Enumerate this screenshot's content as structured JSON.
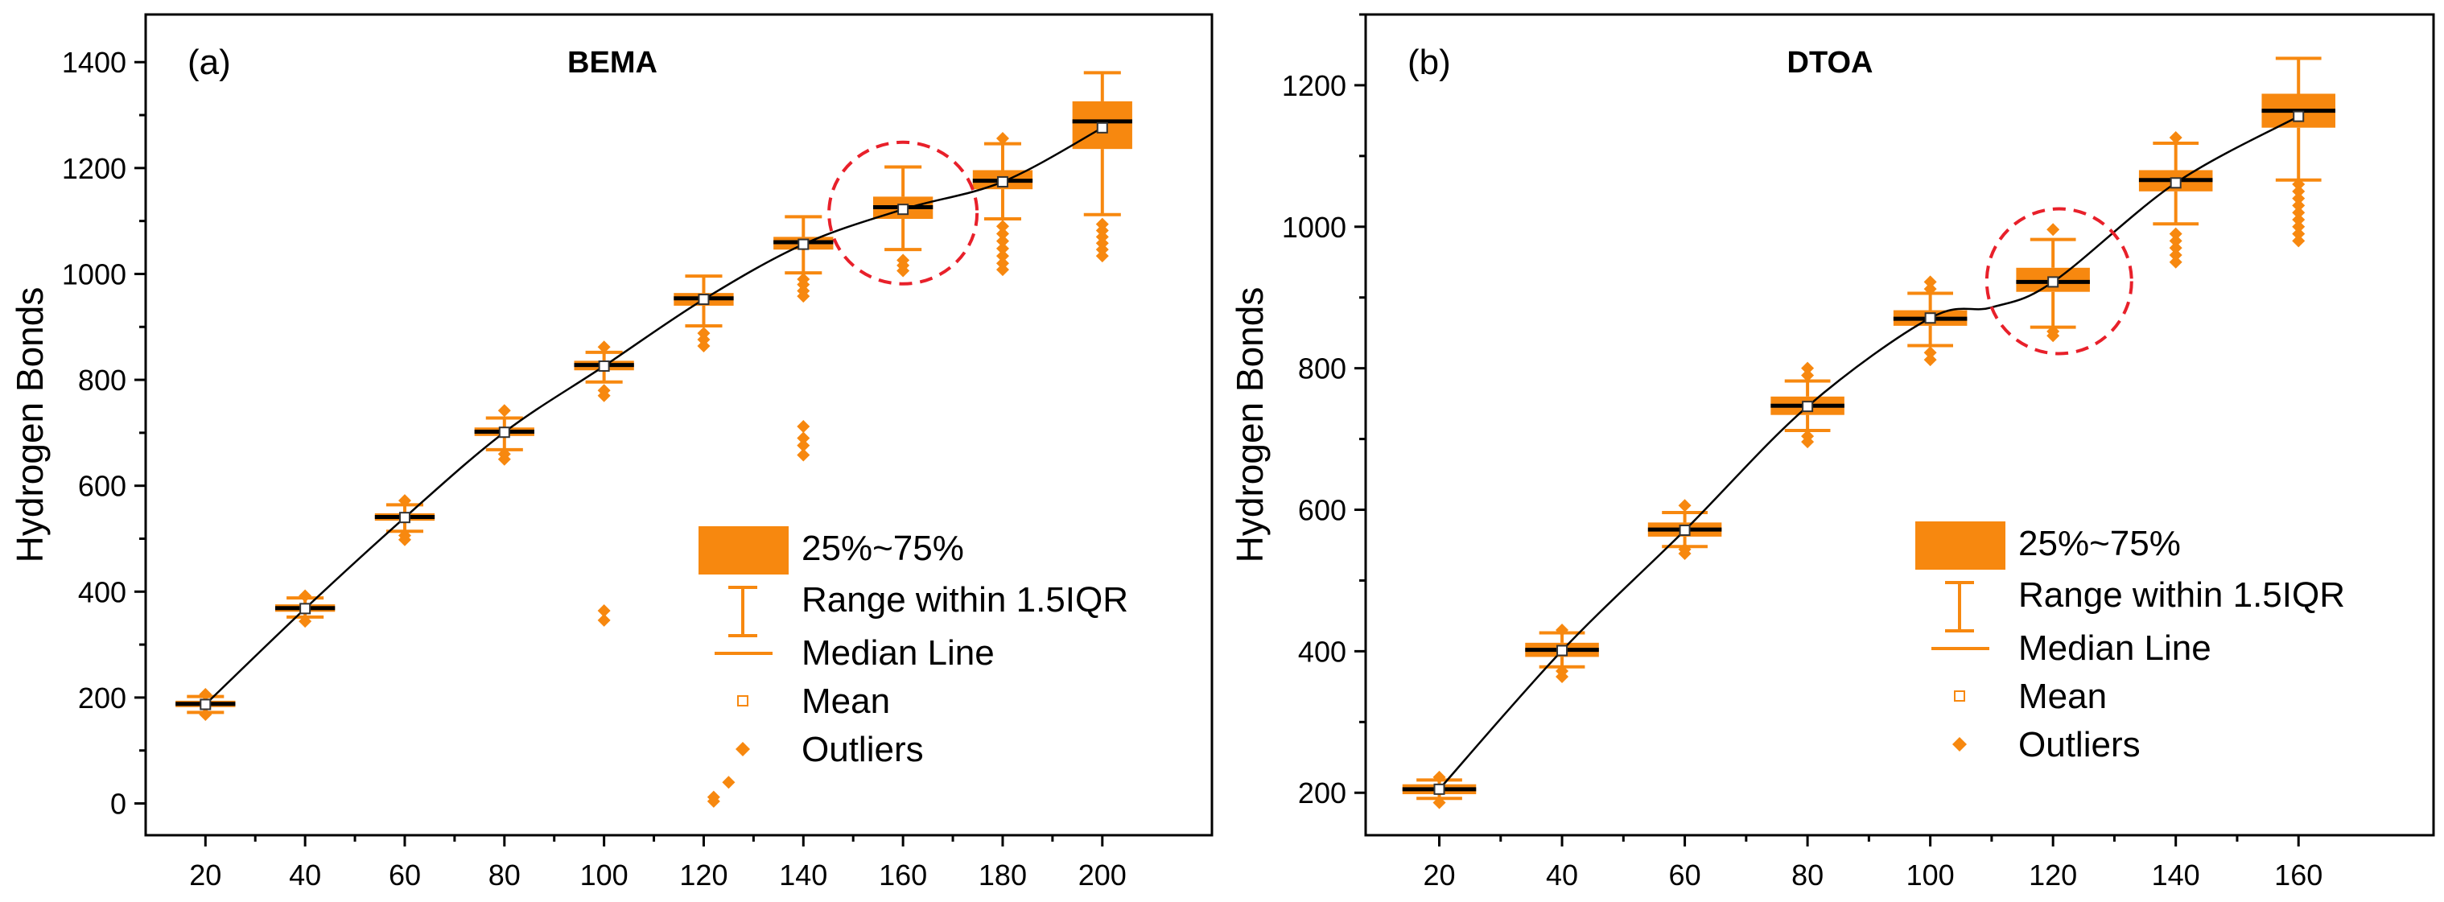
{
  "chart_data": [
    {
      "type": "box",
      "panel_label": "(a)",
      "title": "BEMA",
      "xlabel": "",
      "ylabel": "Hydrogen Bonds",
      "xlim": [
        8,
        222
      ],
      "ylim": [
        -60,
        1490
      ],
      "yticks": [
        0,
        200,
        400,
        600,
        800,
        1000,
        1200,
        1400
      ],
      "categories": [
        20,
        40,
        60,
        80,
        100,
        120,
        140,
        160,
        180,
        200
      ],
      "boxes": [
        {
          "x": 20,
          "q1": 182,
          "q3": 194,
          "median": 188,
          "mean": 187,
          "whisk_low": 172,
          "whisk_high": 202,
          "outliers": [
            168,
            206
          ]
        },
        {
          "x": 40,
          "q1": 362,
          "q3": 376,
          "median": 369,
          "mean": 368,
          "whisk_low": 352,
          "whisk_high": 388,
          "outliers": [
            344,
            392
          ]
        },
        {
          "x": 60,
          "q1": 534,
          "q3": 548,
          "median": 541,
          "mean": 540,
          "whisk_low": 514,
          "whisk_high": 564,
          "outliers": [
            498,
            506,
            572
          ]
        },
        {
          "x": 80,
          "q1": 694,
          "q3": 710,
          "median": 702,
          "mean": 701,
          "whisk_low": 668,
          "whisk_high": 728,
          "outliers": [
            650,
            660,
            742
          ]
        },
        {
          "x": 100,
          "q1": 818,
          "q3": 836,
          "median": 828,
          "mean": 826,
          "whisk_low": 796,
          "whisk_high": 852,
          "outliers": [
            346,
            364,
            770,
            780,
            862
          ]
        },
        {
          "x": 120,
          "q1": 940,
          "q3": 964,
          "median": 954,
          "mean": 952,
          "whisk_low": 902,
          "whisk_high": 996,
          "outliers": [
            864,
            876,
            888
          ]
        },
        {
          "x": 140,
          "q1": 1046,
          "q3": 1070,
          "median": 1060,
          "mean": 1056,
          "whisk_low": 1002,
          "whisk_high": 1108,
          "outliers": [
            658,
            676,
            690,
            712,
            958,
            968,
            980,
            990
          ]
        },
        {
          "x": 160,
          "q1": 1104,
          "q3": 1146,
          "median": 1126,
          "mean": 1122,
          "whisk_low": 1046,
          "whisk_high": 1202,
          "outliers": [
            1006,
            1016,
            1026
          ]
        },
        {
          "x": 180,
          "q1": 1160,
          "q3": 1196,
          "median": 1176,
          "mean": 1174,
          "whisk_low": 1104,
          "whisk_high": 1246,
          "outliers": [
            1008,
            1020,
            1034,
            1048,
            1062,
            1076,
            1090,
            1256
          ]
        },
        {
          "x": 200,
          "q1": 1236,
          "q3": 1326,
          "median": 1288,
          "mean": 1276,
          "whisk_low": 1112,
          "whisk_high": 1380,
          "outliers": [
            1034,
            1046,
            1058,
            1070,
            1082,
            1094
          ]
        }
      ],
      "extra_outliers": [
        {
          "x": 122,
          "y": 4
        },
        {
          "x": 122,
          "y": 12
        },
        {
          "x": 125,
          "y": 40
        }
      ],
      "mean_curve": [
        [
          20,
          187
        ],
        [
          40,
          368
        ],
        [
          60,
          540
        ],
        [
          80,
          701
        ],
        [
          100,
          826
        ],
        [
          120,
          952
        ],
        [
          140,
          1056
        ],
        [
          160,
          1122
        ],
        [
          180,
          1174
        ],
        [
          200,
          1276
        ]
      ],
      "highlight": {
        "x": 160,
        "y": 1115
      },
      "legend": [
        "25%~75%",
        "Range within 1.5IQR",
        "Median Line",
        "Mean",
        "Outliers"
      ]
    },
    {
      "type": "box",
      "panel_label": "(b)",
      "title": "DTOA",
      "xlabel": "",
      "ylabel": "Hydrogen Bonds",
      "xlim": [
        8,
        182
      ],
      "ylim": [
        140,
        1300
      ],
      "yticks": [
        200,
        400,
        600,
        800,
        1000,
        1200
      ],
      "categories": [
        20,
        40,
        60,
        80,
        100,
        120,
        140,
        160
      ],
      "boxes": [
        {
          "x": 20,
          "q1": 198,
          "q3": 212,
          "median": 205,
          "mean": 205,
          "whisk_low": 192,
          "whisk_high": 218,
          "outliers": [
            186,
            222
          ]
        },
        {
          "x": 40,
          "q1": 392,
          "q3": 412,
          "median": 402,
          "mean": 401,
          "whisk_low": 378,
          "whisk_high": 426,
          "outliers": [
            364,
            372,
            430
          ]
        },
        {
          "x": 60,
          "q1": 562,
          "q3": 582,
          "median": 572,
          "mean": 571,
          "whisk_low": 548,
          "whisk_high": 596,
          "outliers": [
            538,
            544,
            606
          ]
        },
        {
          "x": 80,
          "q1": 734,
          "q3": 760,
          "median": 747,
          "mean": 746,
          "whisk_low": 712,
          "whisk_high": 782,
          "outliers": [
            696,
            704,
            790,
            800
          ]
        },
        {
          "x": 100,
          "q1": 860,
          "q3": 882,
          "median": 870,
          "mean": 871,
          "whisk_low": 832,
          "whisk_high": 906,
          "outliers": [
            812,
            822,
            912,
            922
          ]
        },
        {
          "x": 120,
          "q1": 908,
          "q3": 942,
          "median": 922,
          "mean": 922,
          "whisk_low": 858,
          "whisk_high": 982,
          "outliers": [
            846,
            852,
            996
          ]
        },
        {
          "x": 140,
          "q1": 1050,
          "q3": 1080,
          "median": 1066,
          "mean": 1062,
          "whisk_low": 1004,
          "whisk_high": 1118,
          "outliers": [
            950,
            960,
            970,
            980,
            990,
            1126
          ]
        },
        {
          "x": 160,
          "q1": 1140,
          "q3": 1188,
          "median": 1164,
          "mean": 1156,
          "whisk_low": 1066,
          "whisk_high": 1238,
          "outliers": [
            980,
            990,
            1000,
            1010,
            1020,
            1030,
            1040,
            1050,
            1060
          ]
        }
      ],
      "extra_outliers": [],
      "mean_curve": [
        [
          20,
          205
        ],
        [
          40,
          401
        ],
        [
          60,
          571
        ],
        [
          80,
          746
        ],
        [
          100,
          871
        ],
        [
          110,
          886
        ],
        [
          120,
          922
        ],
        [
          140,
          1062
        ],
        [
          160,
          1156
        ]
      ],
      "highlight": {
        "x": 121,
        "y": 923
      },
      "legend": [
        "25%~75%",
        "Range within 1.5IQR",
        "Median Line",
        "Mean",
        "Outliers"
      ]
    }
  ],
  "colors": {
    "box": "#f7880f",
    "median": "#000000",
    "curve": "#000000",
    "highlight": "#e8202a",
    "axis": "#000000"
  }
}
